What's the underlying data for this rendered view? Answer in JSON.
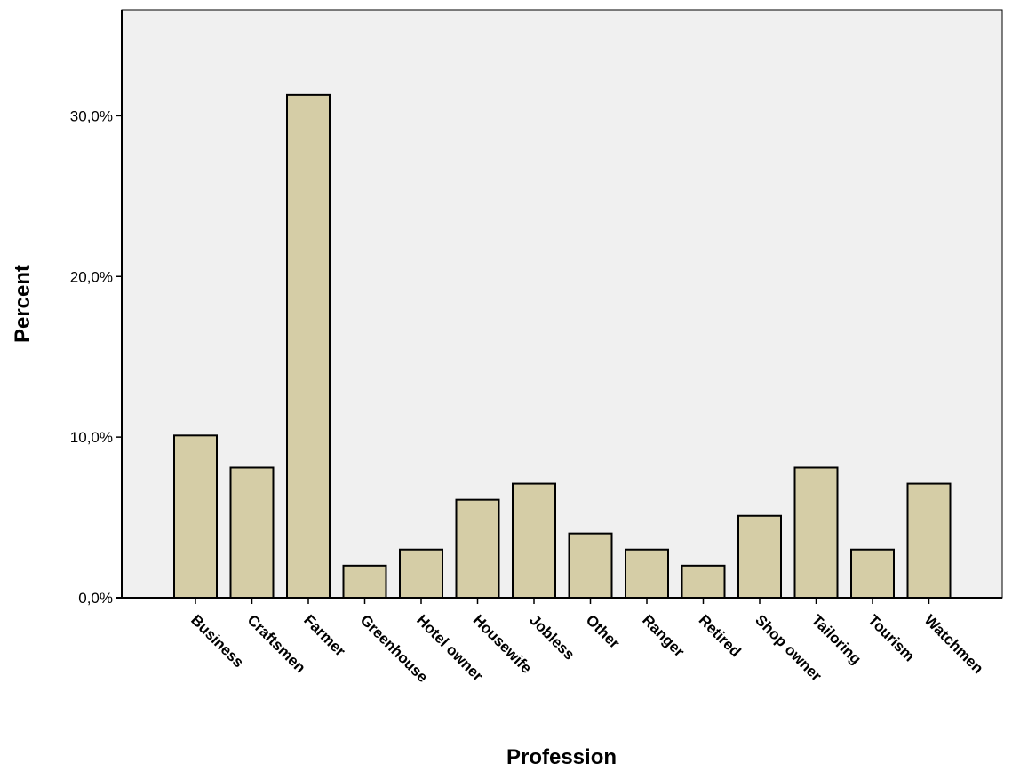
{
  "chart_data": {
    "type": "bar",
    "title": "",
    "xlabel": "Profession",
    "ylabel": "Percent",
    "categories": [
      "Business",
      "Craftsmen",
      "Farmer",
      "Greenhouse",
      "Hotel owner",
      "Housewife",
      "Jobless",
      "Other",
      "Ranger",
      "Retired",
      "Shop owner",
      "Tailoring",
      "Tourism",
      "Watchmen"
    ],
    "values": [
      10.1,
      8.1,
      31.3,
      2.0,
      3.0,
      6.1,
      7.1,
      4.0,
      3.0,
      2.0,
      5.1,
      8.1,
      3.0,
      7.1
    ],
    "yticks": [
      0,
      10,
      20,
      30
    ],
    "ytick_labels": [
      "0,0%",
      "10,0%",
      "20,0%",
      "30,0%"
    ],
    "ylim": [
      0,
      36.6
    ],
    "grid": false,
    "legend": "none",
    "colors": {
      "bar_fill": "#d5cda6",
      "bar_stroke": "#000000",
      "plot_background": "#f0f0f0",
      "page_background": "#ffffff"
    }
  }
}
